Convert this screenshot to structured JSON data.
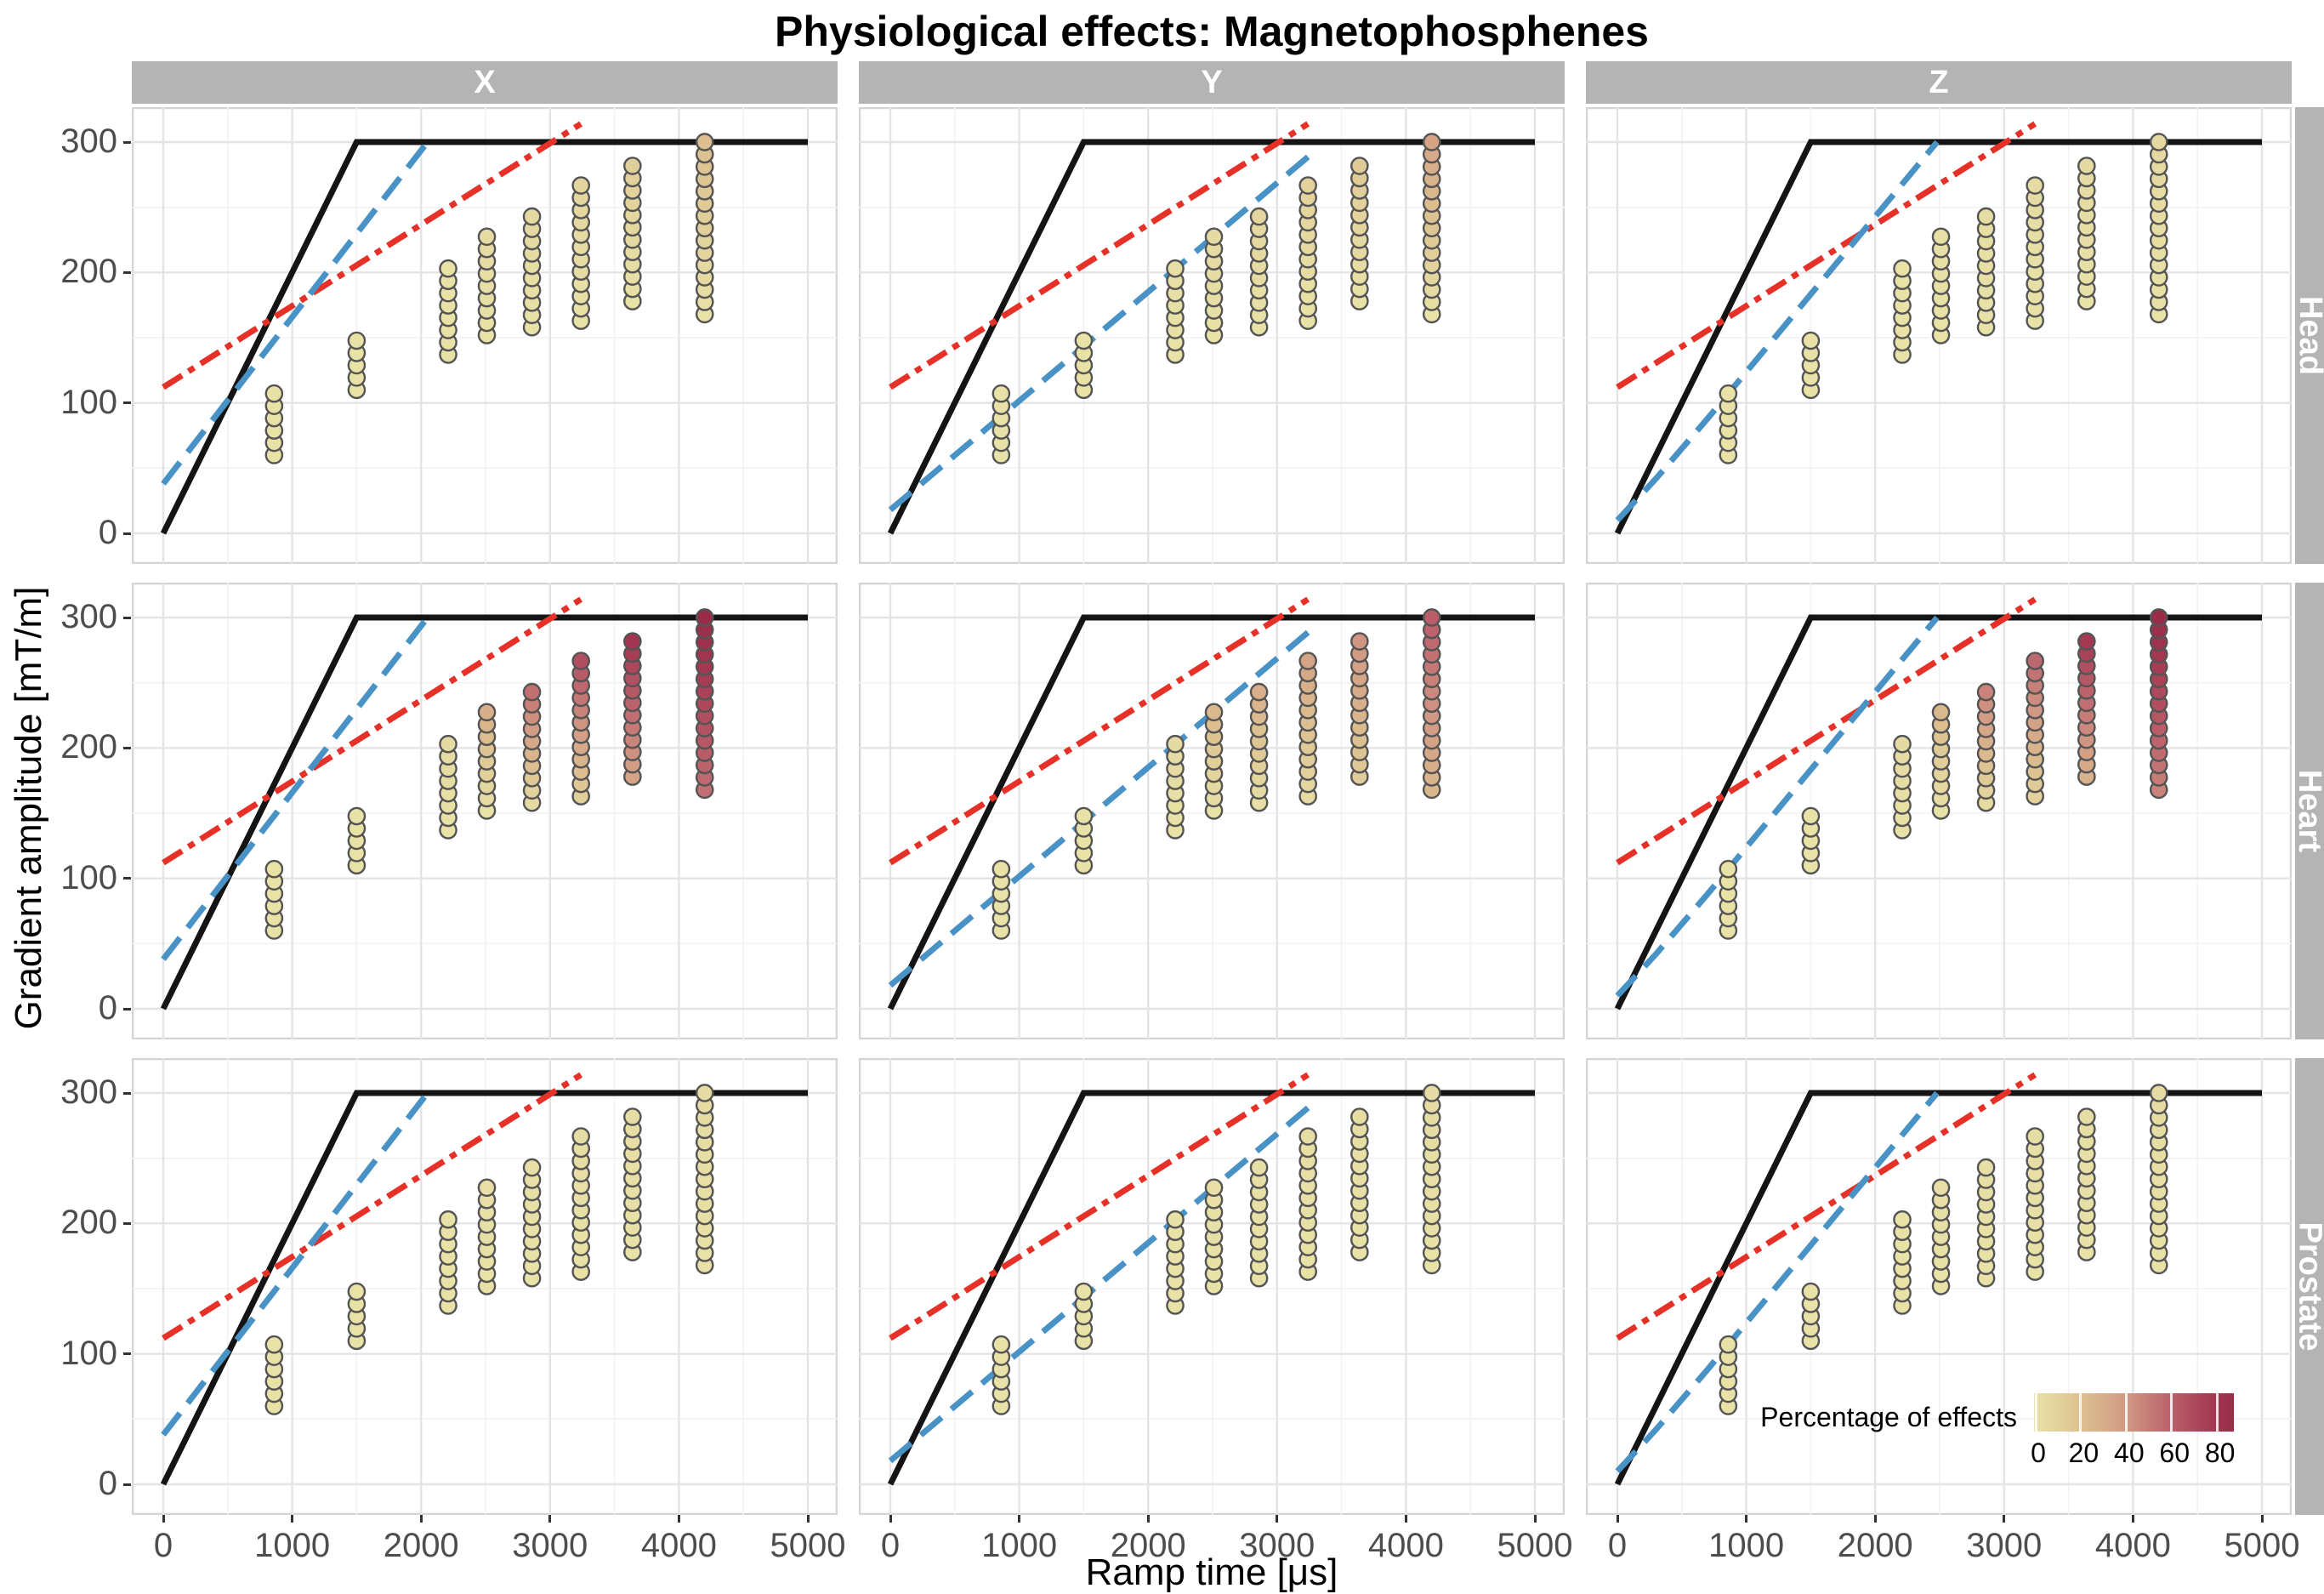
{
  "title": "Physiological effects: Magnetophosphenes",
  "axes": {
    "x_title": "Ramp time [μs]",
    "y_title": "Gradient amplitude [mT/m]",
    "x_ticks": [
      0,
      1000,
      2000,
      3000,
      4000,
      5000
    ],
    "y_ticks": [
      0,
      100,
      200,
      300
    ]
  },
  "facets": {
    "columns": [
      "X",
      "Y",
      "Z"
    ],
    "rows": [
      "Head",
      "Heart",
      "Prostate"
    ]
  },
  "legend": {
    "title": "Percentage of effects",
    "ticks": [
      0,
      20,
      40,
      60,
      80
    ],
    "max": 88
  },
  "colors": {
    "black_line": "#141414",
    "red_line": "#e53128",
    "blue_line": "#4892c6",
    "dot_stroke": "#545454",
    "strip_bg": "#b4b4b4",
    "strip_text": "#ffffff",
    "grid_major": "#e4e4e4",
    "grid_minor": "#f2f2f2",
    "panel_border": "#d4d4d4",
    "tick_text": "#4d4d4d",
    "scale_stops": [
      [
        0,
        "#e8e2a7"
      ],
      [
        20,
        "#ddc291"
      ],
      [
        40,
        "#d29a84"
      ],
      [
        60,
        "#bb616b"
      ],
      [
        80,
        "#a23550"
      ],
      [
        88,
        "#992c49"
      ]
    ]
  },
  "chart_data": {
    "type": "scatter",
    "title": "Physiological effects: Magnetophosphenes",
    "xlabel": "Ramp time [μs]",
    "ylabel": "Gradient amplitude [mT/m]",
    "xlim": [
      0,
      5000
    ],
    "ylim": [
      0,
      300
    ],
    "grid": true,
    "legend_position": "inside bottom-right panel",
    "reference_lines": {
      "black_solid_limit": [
        [
          0,
          0
        ],
        [
          1500,
          300
        ],
        [
          5000,
          300
        ]
      ],
      "red_dashdot": [
        [
          0,
          112
        ],
        [
          3240,
          314
        ]
      ],
      "blue_dashed_by_column": {
        "X": [
          [
            0,
            38
          ],
          [
            2050,
            300
          ]
        ],
        "Y": [
          [
            0,
            18
          ],
          [
            3280,
            292
          ]
        ],
        "Z": [
          [
            0,
            10
          ],
          [
            300,
            42
          ],
          [
            700,
            88
          ],
          [
            2480,
            300
          ]
        ]
      }
    },
    "dot_stacks": {
      "x_positions": [
        860,
        1500,
        2210,
        2510,
        2860,
        3240,
        3640,
        4200
      ],
      "dot_counts": [
        6,
        5,
        8,
        9,
        10,
        12,
        12,
        15
      ],
      "bottom_y": [
        60,
        110,
        137,
        152,
        158,
        163,
        178,
        168
      ],
      "dot_spacing_y": 9.43
    },
    "panels": [
      {
        "row": "Head",
        "col": "X",
        "pct_bottom_top": [
          [
            0,
            0
          ],
          [
            0,
            0
          ],
          [
            0,
            0
          ],
          [
            0,
            4
          ],
          [
            0,
            6
          ],
          [
            0,
            8
          ],
          [
            0,
            12
          ],
          [
            0,
            22
          ]
        ]
      },
      {
        "row": "Head",
        "col": "Y",
        "pct_bottom_top": [
          [
            0,
            0
          ],
          [
            0,
            0
          ],
          [
            0,
            2
          ],
          [
            0,
            5
          ],
          [
            0,
            8
          ],
          [
            0,
            10
          ],
          [
            0,
            15
          ],
          [
            0,
            35
          ]
        ]
      },
      {
        "row": "Head",
        "col": "Z",
        "pct_bottom_top": [
          [
            0,
            0
          ],
          [
            0,
            0
          ],
          [
            0,
            0
          ],
          [
            0,
            2
          ],
          [
            0,
            3
          ],
          [
            0,
            4
          ],
          [
            0,
            5
          ],
          [
            0,
            6
          ]
        ]
      },
      {
        "row": "Heart",
        "col": "X",
        "pct_bottom_top": [
          [
            0,
            0
          ],
          [
            0,
            0
          ],
          [
            0,
            5
          ],
          [
            0,
            30
          ],
          [
            5,
            55
          ],
          [
            12,
            68
          ],
          [
            35,
            80
          ],
          [
            55,
            88
          ]
        ]
      },
      {
        "row": "Heart",
        "col": "Y",
        "pct_bottom_top": [
          [
            0,
            0
          ],
          [
            0,
            0
          ],
          [
            0,
            5
          ],
          [
            0,
            25
          ],
          [
            2,
            30
          ],
          [
            5,
            35
          ],
          [
            14,
            42
          ],
          [
            25,
            62
          ]
        ]
      },
      {
        "row": "Heart",
        "col": "Z",
        "pct_bottom_top": [
          [
            0,
            0
          ],
          [
            0,
            0
          ],
          [
            0,
            5
          ],
          [
            0,
            25
          ],
          [
            5,
            48
          ],
          [
            10,
            58
          ],
          [
            28,
            78
          ],
          [
            48,
            88
          ]
        ]
      },
      {
        "row": "Prostate",
        "col": "X",
        "pct_bottom_top": [
          [
            0,
            0
          ],
          [
            0,
            0
          ],
          [
            0,
            0
          ],
          [
            0,
            2
          ],
          [
            0,
            2
          ],
          [
            0,
            3
          ],
          [
            0,
            3
          ],
          [
            0,
            4
          ]
        ]
      },
      {
        "row": "Prostate",
        "col": "Y",
        "pct_bottom_top": [
          [
            0,
            0
          ],
          [
            0,
            0
          ],
          [
            0,
            0
          ],
          [
            0,
            2
          ],
          [
            0,
            2
          ],
          [
            0,
            3
          ],
          [
            0,
            3
          ],
          [
            0,
            4
          ]
        ]
      },
      {
        "row": "Prostate",
        "col": "Z",
        "pct_bottom_top": [
          [
            0,
            0
          ],
          [
            0,
            0
          ],
          [
            0,
            0
          ],
          [
            0,
            2
          ],
          [
            0,
            2
          ],
          [
            0,
            3
          ],
          [
            0,
            3
          ],
          [
            0,
            4
          ]
        ]
      }
    ]
  }
}
